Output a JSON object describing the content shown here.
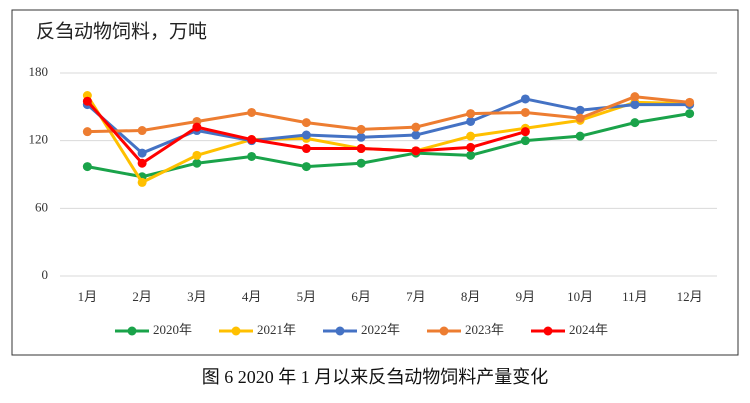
{
  "chart_data": {
    "type": "line",
    "title": "反刍动物饲料，万吨",
    "caption": "图 6  2020 年 1 月以来反刍动物饲料产量变化",
    "categories": [
      "1月",
      "2月",
      "3月",
      "4月",
      "5月",
      "6月",
      "7月",
      "8月",
      "9月",
      "10月",
      "11月",
      "12月"
    ],
    "series": [
      {
        "name": "2020年",
        "color": "#1aa34a",
        "values": [
          97,
          88,
          100,
          106,
          97,
          100,
          109,
          107,
          120,
          124,
          136,
          144
        ]
      },
      {
        "name": "2021年",
        "color": "#ffc000",
        "values": [
          160,
          83,
          107,
          121,
          122,
          113,
          111,
          124,
          131,
          138,
          154,
          153
        ]
      },
      {
        "name": "2022年",
        "color": "#4472c4",
        "values": [
          152,
          109,
          129,
          120,
          125,
          123,
          125,
          137,
          157,
          147,
          152,
          152
        ]
      },
      {
        "name": "2023年",
        "color": "#ed7d31",
        "values": [
          128,
          129,
          137,
          145,
          136,
          130,
          132,
          144,
          145,
          140,
          159,
          154
        ]
      },
      {
        "name": "2024年",
        "color": "#ff0000",
        "values": [
          155,
          100,
          132,
          121,
          113,
          113,
          111,
          114,
          128,
          null,
          null,
          null
        ]
      }
    ],
    "ylim": [
      0,
      180
    ],
    "yticks": [
      0,
      60,
      120,
      180
    ],
    "grid": true,
    "legend": "bottom"
  }
}
